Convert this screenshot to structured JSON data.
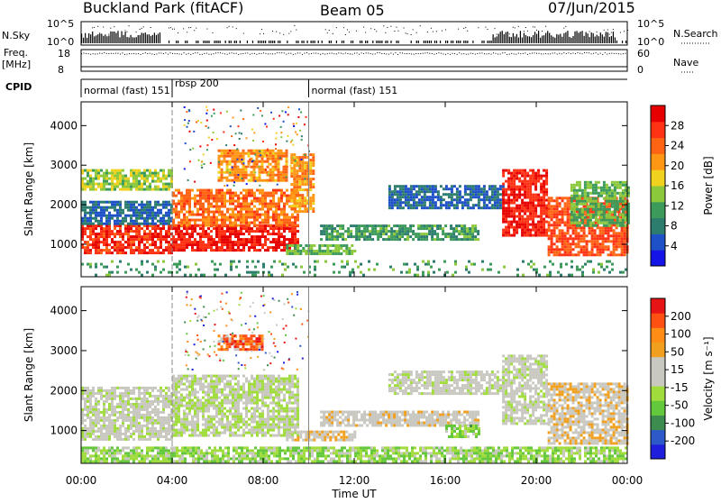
{
  "header": {
    "station": "Buckland Park (fitACF)",
    "beam": "Beam 05",
    "date": "07/Jun/2015"
  },
  "strip_panels": {
    "nsky_label": "N.Sky",
    "nsky_ticks": [
      "10^5",
      "10^0"
    ],
    "nsearch_label": "N.Search",
    "freq_label_line1": "Freq.",
    "freq_label_line2": "[MHz]",
    "freq_ticks": [
      "18",
      "8"
    ],
    "nave_label": "Nave",
    "nave_ticks": [
      "60",
      "0"
    ],
    "cpid_label": "CPID",
    "cpid_segments": [
      {
        "label": "normal (fast) 151",
        "start_hour": 0,
        "end_hour": 4.0
      },
      {
        "label": "rbsp 200",
        "start_hour": 4.0,
        "end_hour": 10.0
      },
      {
        "label": "normal (fast) 151",
        "start_hour": 10.0,
        "end_hour": 24.0
      }
    ]
  },
  "colors": {
    "power_scale": [
      "#1414e6",
      "#1e50c8",
      "#2d7d6e",
      "#3c9b5a",
      "#8cc83c",
      "#f0d21e",
      "#ff9614",
      "#ff6414",
      "#ff3214",
      "#e60000"
    ],
    "velocity_scale": [
      "#1e1edc",
      "#2d5ac8",
      "#3c8c50",
      "#64c83c",
      "#a0dc3c",
      "#c8c8c0",
      "#c8c8c0",
      "#f0a01e",
      "#ff8c14",
      "#ff5014",
      "#e61414"
    ],
    "gray_scatter": "#c8c8c0"
  },
  "chart_data": [
    {
      "type": "heatmap",
      "title": "",
      "xlabel": "Time UT",
      "ylabel": "Slant Range [km]",
      "xlim": [
        0,
        24
      ],
      "ylim": [
        180,
        4600
      ],
      "x_ticks": [
        "00:00",
        "04:00",
        "08:00",
        "12:00",
        "16:00",
        "20:00",
        "00:00"
      ],
      "y_ticks": [
        1000,
        2000,
        3000,
        4000
      ],
      "colorbar": {
        "label": "Power [dB]",
        "range": [
          0,
          30
        ],
        "tick_labels": [
          "28",
          "24",
          "20",
          "16",
          "12",
          "8",
          "4"
        ]
      },
      "regions": [
        {
          "t": [
            0.0,
            4.0
          ],
          "range": [
            800,
            1500
          ],
          "value": 26
        },
        {
          "t": [
            0.0,
            4.0
          ],
          "range": [
            1500,
            2100
          ],
          "value": 6
        },
        {
          "t": [
            0.0,
            4.0
          ],
          "range": [
            2400,
            2900
          ],
          "value": 14
        },
        {
          "t": [
            4.0,
            9.5
          ],
          "range": [
            850,
            1500
          ],
          "value": 27
        },
        {
          "t": [
            4.0,
            9.5
          ],
          "range": [
            1500,
            2400
          ],
          "value": 22
        },
        {
          "t": [
            6.0,
            9.0
          ],
          "range": [
            2600,
            3400
          ],
          "value": 20
        },
        {
          "t": [
            9.2,
            10.2
          ],
          "range": [
            1800,
            3300
          ],
          "value": 20
        },
        {
          "t": [
            9.0,
            12.0
          ],
          "range": [
            750,
            1000
          ],
          "value": 12
        },
        {
          "t": [
            10.5,
            17.5
          ],
          "range": [
            1100,
            1500
          ],
          "value": 10
        },
        {
          "t": [
            13.5,
            18.5
          ],
          "range": [
            1900,
            2500
          ],
          "value": 6
        },
        {
          "t": [
            18.5,
            20.5
          ],
          "range": [
            1200,
            2900
          ],
          "value": 27
        },
        {
          "t": [
            20.5,
            24.0
          ],
          "range": [
            700,
            2200
          ],
          "value": 24
        },
        {
          "t": [
            21.5,
            24.0
          ],
          "range": [
            1500,
            2600
          ],
          "value": 12
        },
        {
          "t": [
            0.0,
            24.0
          ],
          "range": [
            200,
            600
          ],
          "value": 10
        }
      ]
    },
    {
      "type": "heatmap",
      "title": "",
      "xlabel": "Time UT",
      "ylabel": "Slant Range [km]",
      "xlim": [
        0,
        24
      ],
      "ylim": [
        180,
        4600
      ],
      "x_ticks": [
        "00:00",
        "04:00",
        "08:00",
        "12:00",
        "16:00",
        "20:00",
        "00:00"
      ],
      "y_ticks": [
        1000,
        2000,
        3000,
        4000
      ],
      "colorbar": {
        "label": "Velocity [m s⁻¹]",
        "range": [
          -250,
          250
        ],
        "tick_labels": [
          "200",
          "100",
          "50",
          "15",
          "-15",
          "-50",
          "-100",
          "-200"
        ]
      },
      "regions": [
        {
          "t": [
            0.0,
            4.0
          ],
          "range": [
            800,
            2100
          ],
          "value": 0
        },
        {
          "t": [
            4.0,
            9.5
          ],
          "range": [
            850,
            2400
          ],
          "value": -20
        },
        {
          "t": [
            6.0,
            8.0
          ],
          "range": [
            3000,
            3400
          ],
          "value": 180
        },
        {
          "t": [
            9.0,
            12.0
          ],
          "range": [
            750,
            1000
          ],
          "value": 60
        },
        {
          "t": [
            10.5,
            17.5
          ],
          "range": [
            1100,
            1500
          ],
          "value": 40
        },
        {
          "t": [
            13.5,
            18.5
          ],
          "range": [
            1900,
            2500
          ],
          "value": 0
        },
        {
          "t": [
            16.0,
            17.5
          ],
          "range": [
            850,
            1150
          ],
          "value": -70
        },
        {
          "t": [
            18.5,
            20.5
          ],
          "range": [
            1200,
            2900
          ],
          "value": 0
        },
        {
          "t": [
            20.5,
            24.0
          ],
          "range": [
            700,
            2200
          ],
          "value": 60
        },
        {
          "t": [
            0.0,
            24.0
          ],
          "range": [
            200,
            600
          ],
          "value": -60
        }
      ]
    }
  ]
}
